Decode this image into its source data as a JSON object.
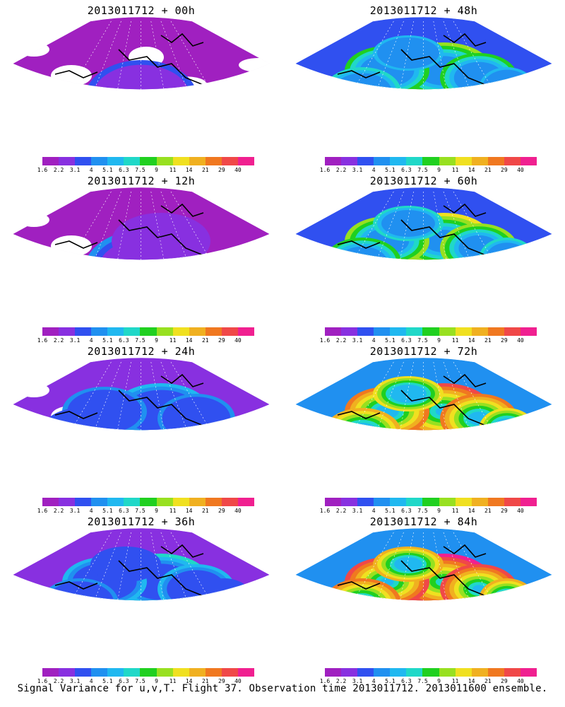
{
  "footer": "Signal Variance for u,v,T. Flight 37. Observation time 2013011712. 2013011600 ensemble.",
  "colorbar": {
    "ticks": [
      "1.6",
      "2.2",
      "3.1",
      "4",
      "5.1",
      "6.3",
      "7.5",
      "9",
      "11",
      "14",
      "21",
      "29",
      "40"
    ],
    "colors": [
      "#a020c0",
      "#8830e0",
      "#3050f0",
      "#2090f0",
      "#20b8f0",
      "#20d8c8",
      "#20d020",
      "#98e020",
      "#f0e020",
      "#f0b020",
      "#f07820",
      "#f04848",
      "#f02090"
    ]
  },
  "panels": [
    {
      "title": "2013011712 + 00h",
      "hours": 0
    },
    {
      "title": "2013011712 + 48h",
      "hours": 48
    },
    {
      "title": "2013011712 + 12h",
      "hours": 12
    },
    {
      "title": "2013011712 + 60h",
      "hours": 60
    },
    {
      "title": "2013011712 + 24h",
      "hours": 24
    },
    {
      "title": "2013011712 + 72h",
      "hours": 72
    },
    {
      "title": "2013011712 + 36h",
      "hours": 36
    },
    {
      "title": "2013011712 + 84h",
      "hours": 84
    }
  ],
  "chart_data": {
    "type": "heatmap",
    "variable": "Signal Variance for u,v,T",
    "flight": 37,
    "observation_time": "2013011712",
    "ensemble": "2013011600",
    "colorbar_levels": [
      1.6,
      2.2,
      3.1,
      4,
      5.1,
      6.3,
      7.5,
      9,
      11,
      14,
      21,
      29,
      40
    ],
    "lead_times_hours": [
      0,
      12,
      24,
      36,
      48,
      60,
      72,
      84
    ]
  }
}
